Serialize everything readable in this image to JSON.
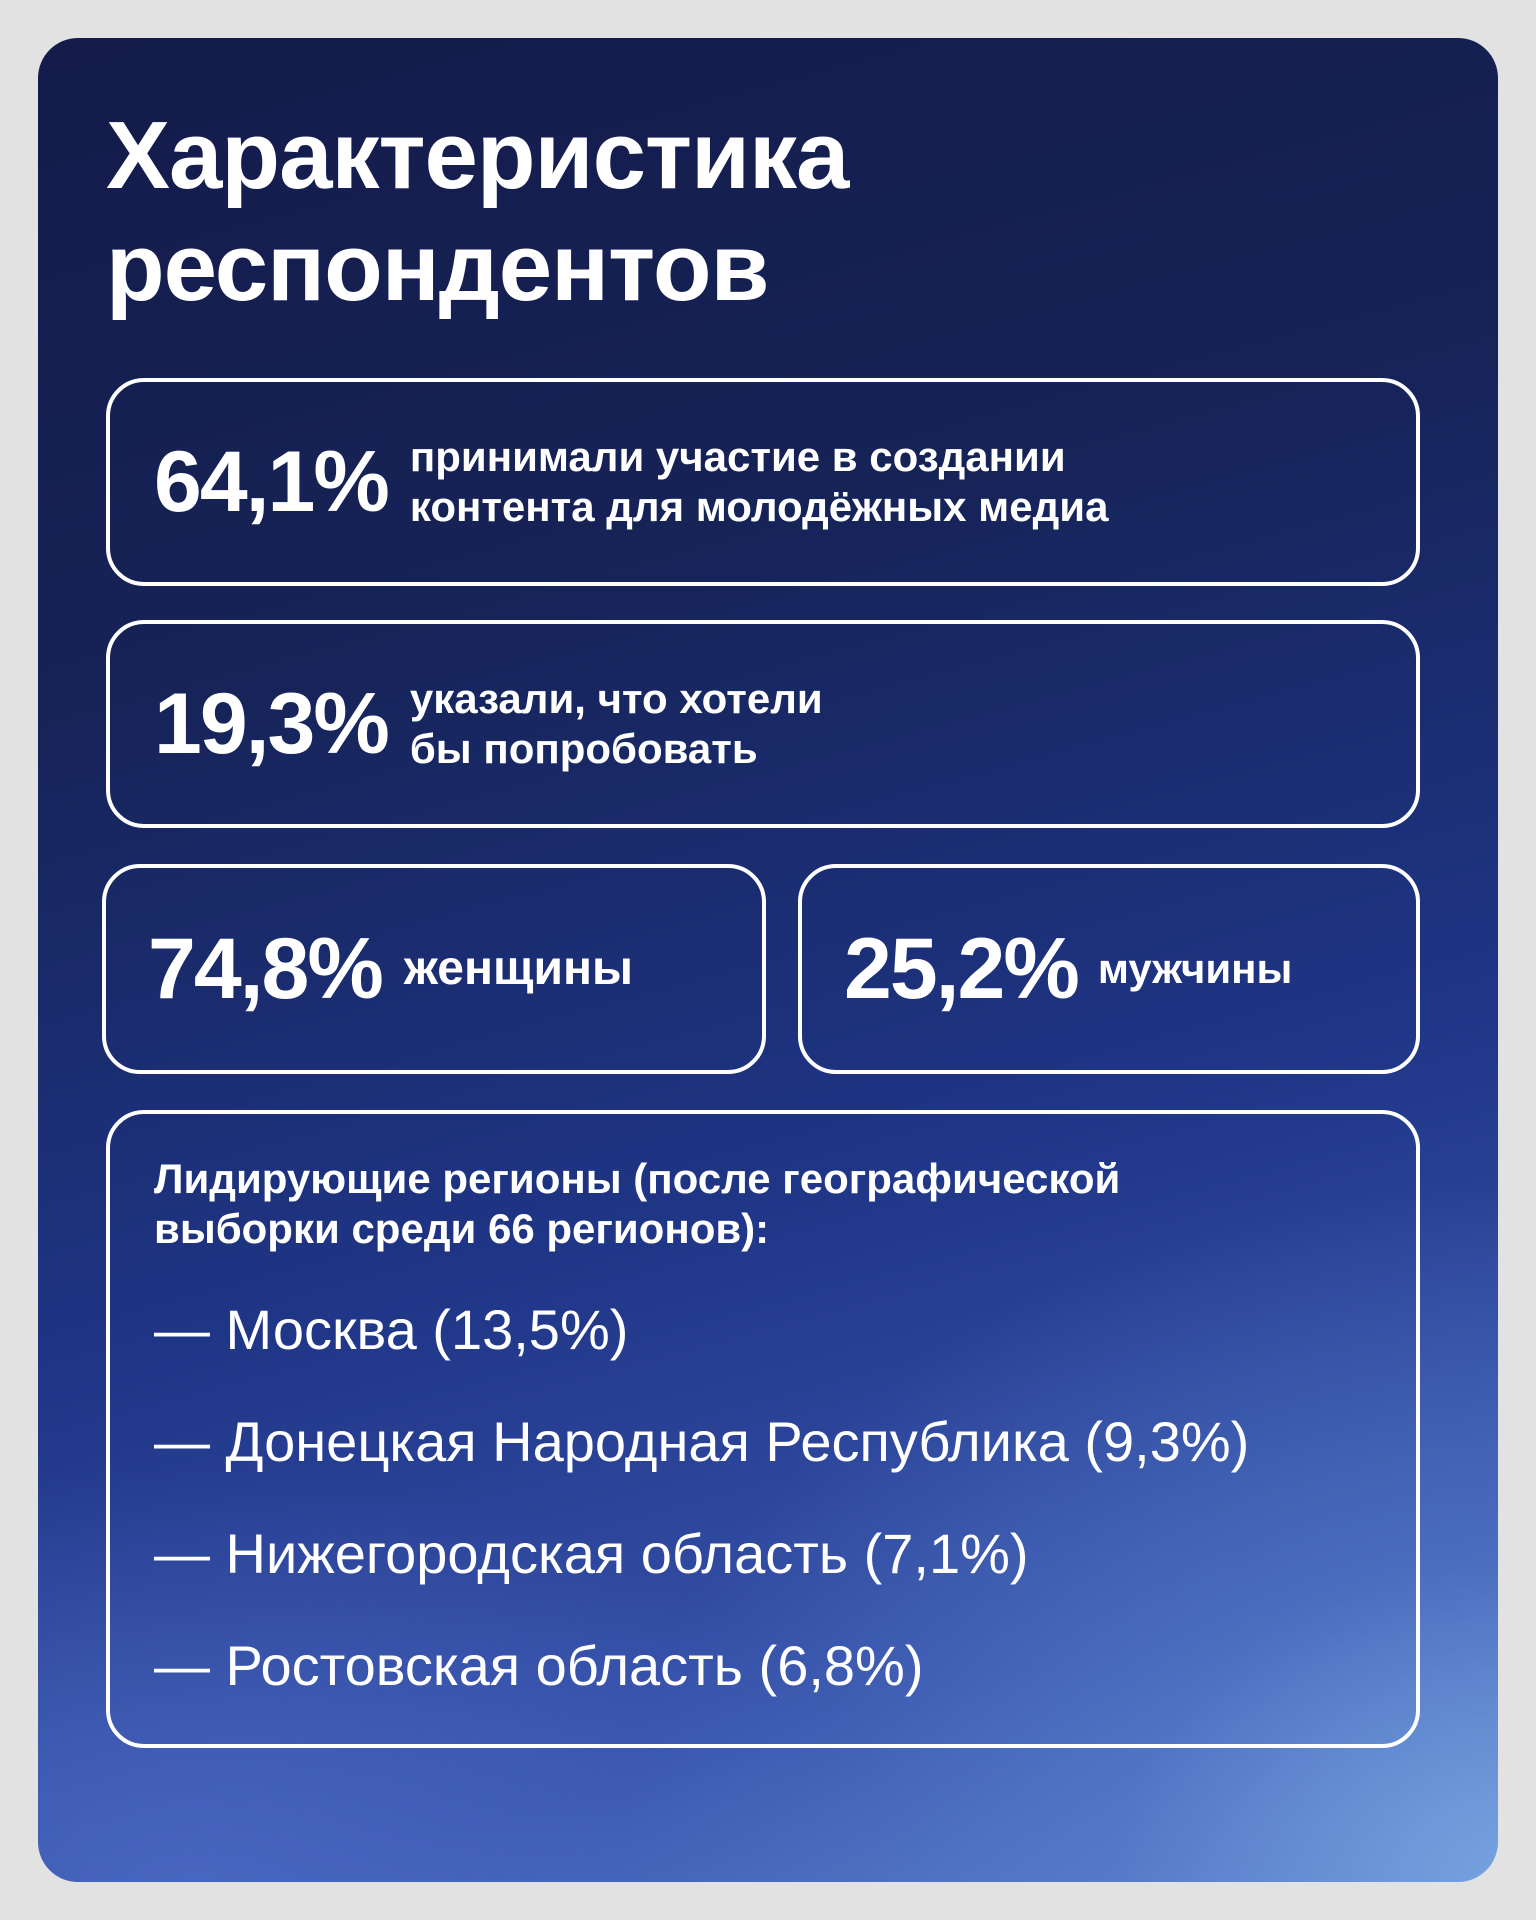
{
  "title": "Характеристика\nреспондентов",
  "stats": [
    {
      "value": "64,1%",
      "lines": [
        "принимали участие в создании",
        "контента для молодёжных медиа"
      ]
    },
    {
      "value": "19,3%",
      "lines": [
        "указали, что хотели",
        "бы попробовать"
      ]
    }
  ],
  "gender": [
    {
      "value": "74,8%",
      "label": "женщины"
    },
    {
      "value": "25,2%",
      "label": "мужчины"
    }
  ],
  "regions": {
    "intro_lines": [
      "Лидирующие регионы (после географической",
      "выборки среди 66 регионов):"
    ],
    "items": [
      "— Москва (13,5%)",
      "— Донецкая Народная Республика (9,3%)",
      "— Нижегородская область (7,1%)",
      "— Ростовская область (6,8%)"
    ]
  }
}
